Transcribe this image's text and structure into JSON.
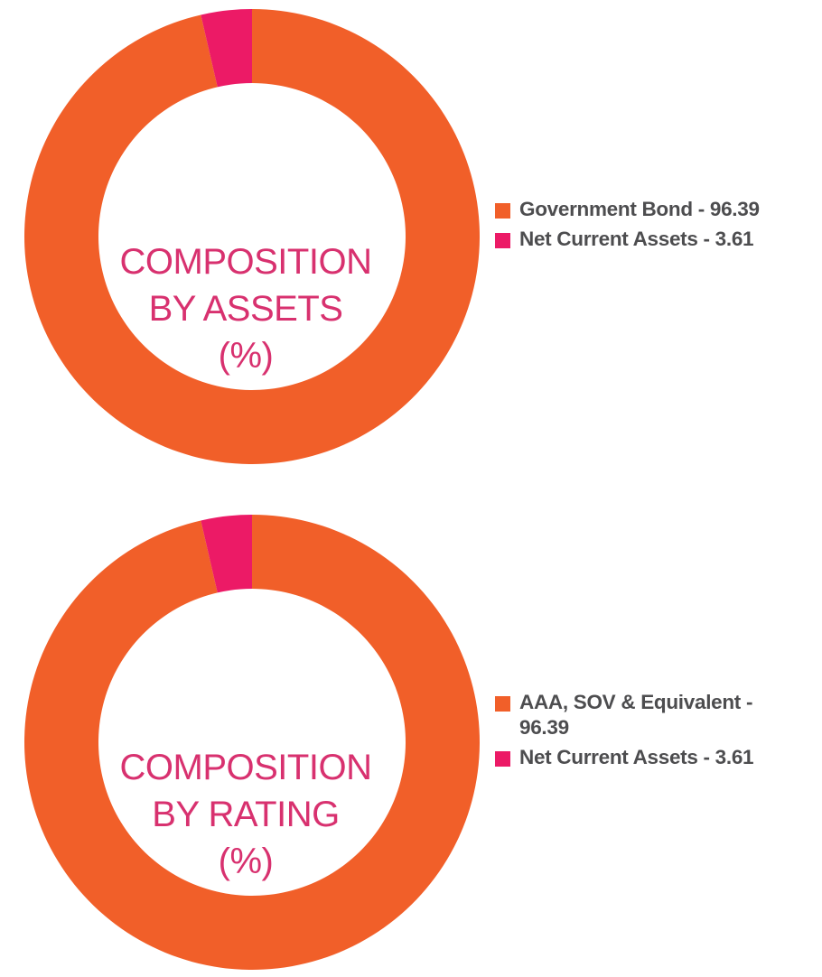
{
  "colors": {
    "primary": "#f15f29",
    "secondary": "#ec1a66",
    "title": "#d8316f",
    "legend_text": "#4d4d4f"
  },
  "chart_data": [
    {
      "type": "pie",
      "variant": "donut",
      "title_lines": [
        "COMPOSITION",
        "BY ASSETS",
        "(%)"
      ],
      "legend_placement": "right",
      "categories": [
        "Government Bond",
        "Net Current Assets"
      ],
      "values": [
        96.39,
        3.61
      ],
      "legend_labels": [
        "Government Bond - 96.39",
        "Net Current Assets - 3.61"
      ]
    },
    {
      "type": "pie",
      "variant": "donut",
      "title_lines": [
        "COMPOSITION",
        "BY RATING",
        "(%)"
      ],
      "legend_placement": "right",
      "categories": [
        "AAA, SOV & Equivalent",
        "Net Current Assets"
      ],
      "values": [
        96.39,
        3.61
      ],
      "legend_labels": [
        "AAA, SOV & Equivalent - 96.39",
        "Net Current Assets - 3.61"
      ]
    }
  ]
}
